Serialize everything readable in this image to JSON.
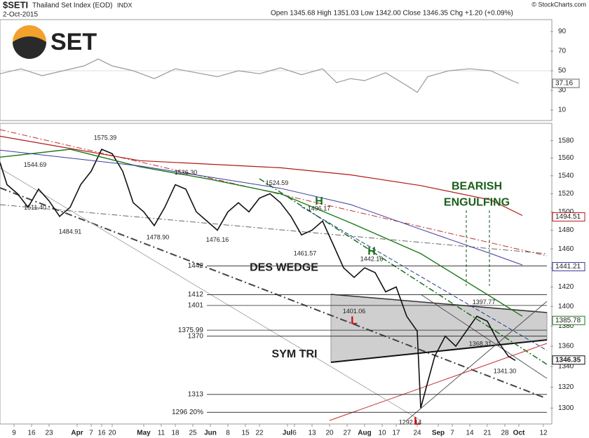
{
  "chart_data": {
    "type": "line",
    "symbol": "$SETI",
    "title": "Thailand Set Index (EOD)",
    "exchange": "INDX",
    "date": "2-Oct-2015",
    "quote": "Open 1345.68 High 1351.03 Low 1342.00 Close 1346.35 Chg +1.20 (+0.09%)",
    "credit": "© StockCharts.com",
    "logo": "SET",
    "log_scale": true,
    "grid": false,
    "xlim": [
      0,
      157
    ],
    "xticks": [
      {
        "value": 4,
        "label": "9"
      },
      {
        "value": 9,
        "label": "16"
      },
      {
        "value": 14,
        "label": "23"
      },
      {
        "value": 22,
        "label": "Apr"
      },
      {
        "value": 26,
        "label": "7"
      },
      {
        "value": 29,
        "label": "16"
      },
      {
        "value": 32,
        "label": "20"
      },
      {
        "value": 41,
        "label": "May"
      },
      {
        "value": 46,
        "label": "11"
      },
      {
        "value": 50,
        "label": "18"
      },
      {
        "value": 55,
        "label": "25"
      },
      {
        "value": 60,
        "label": "Jun"
      },
      {
        "value": 65,
        "label": "8"
      },
      {
        "value": 70,
        "label": "15"
      },
      {
        "value": 74,
        "label": "22"
      },
      {
        "value": 82,
        "label": "Jul"
      },
      {
        "value": 84,
        "label": "6"
      },
      {
        "value": 89,
        "label": "13"
      },
      {
        "value": 94,
        "label": "20"
      },
      {
        "value": 99,
        "label": "27"
      },
      {
        "value": 104,
        "label": "Aug"
      },
      {
        "value": 109,
        "label": "10"
      },
      {
        "value": 113,
        "label": "17"
      },
      {
        "value": 119,
        "label": "24"
      },
      {
        "value": 125,
        "label": "Sep"
      },
      {
        "value": 129,
        "label": "7"
      },
      {
        "value": 134,
        "label": "14"
      },
      {
        "value": 139,
        "label": "21"
      },
      {
        "value": 144,
        "label": "28"
      },
      {
        "value": 148,
        "label": "Oct"
      },
      {
        "value": 155,
        "label": "12"
      }
    ],
    "ylim": [
      1285,
      1600
    ],
    "yticks": [
      1300,
      1320,
      1340,
      1360,
      1380,
      1400,
      1420,
      1440,
      1460,
      1480,
      1500,
      1520,
      1540,
      1560,
      1580
    ],
    "series": [
      {
        "name": "SETI",
        "color": "#111111",
        "width": 1.6,
        "x": [
          0,
          2,
          5,
          8,
          11,
          14,
          17,
          20,
          23,
          26,
          29,
          32,
          35,
          38,
          41,
          44,
          47,
          50,
          53,
          56,
          59,
          62,
          65,
          68,
          71,
          74,
          77,
          80,
          83,
          86,
          89,
          92,
          95,
          98,
          101,
          104,
          107,
          110,
          113,
          116,
          119,
          120,
          122,
          124,
          127,
          130,
          133,
          136,
          139,
          142,
          145,
          147
        ],
        "values": [
          1555,
          1530,
          1520,
          1505,
          1525,
          1512,
          1495,
          1505,
          1530,
          1545,
          1570,
          1565,
          1545,
          1510,
          1500,
          1485,
          1505,
          1530,
          1525,
          1500,
          1490,
          1480,
          1500,
          1510,
          1500,
          1515,
          1520,
          1510,
          1495,
          1475,
          1480,
          1490,
          1465,
          1440,
          1430,
          1440,
          1435,
          1415,
          1420,
          1390,
          1375,
          1300,
          1325,
          1350,
          1370,
          1360,
          1375,
          1390,
          1385,
          1365,
          1350,
          1346
        ]
      },
      {
        "name": "MA50",
        "color": "#1a7a1a",
        "width": 1.4,
        "x": [
          0,
          20,
          40,
          60,
          80,
          100,
          120,
          140,
          149
        ],
        "values": [
          1561,
          1570,
          1550,
          1536,
          1520,
          1488,
          1455,
          1410,
          1390
        ]
      },
      {
        "name": "MA100",
        "color": "#3a3a9a",
        "width": 1,
        "x": [
          0,
          40,
          80,
          100,
          120,
          140,
          149
        ],
        "values": [
          1569,
          1551,
          1526,
          1508,
          1481,
          1455,
          1443
        ]
      },
      {
        "name": "MA200",
        "color": "#b01818",
        "width": 1.2,
        "x": [
          0,
          40,
          80,
          100,
          120,
          140,
          149
        ],
        "values": [
          1585,
          1557,
          1549,
          1541,
          1529,
          1513,
          1496
        ]
      }
    ],
    "flags": [
      {
        "value": 1494.51,
        "color": "#b01818"
      },
      {
        "value": 1441.21,
        "color": "#3a3a9a"
      },
      {
        "value": 1385.78,
        "color": "#1a7a1a"
      },
      {
        "value": 1346.35,
        "color": "#111111"
      }
    ],
    "levels": [
      1442,
      1412,
      1401,
      1375.99,
      1370,
      1313,
      {
        "value": 1296,
        "label": "1296 20%"
      }
    ],
    "price_labels": [
      {
        "x": 30,
        "value": 1575.39,
        "pos": "above"
      },
      {
        "x": 10,
        "value": 1544.69,
        "pos": "above"
      },
      {
        "x": 10,
        "value": 1511.4,
        "label": "1511.40",
        "pos": "below"
      },
      {
        "x": 20,
        "value": 1484.91,
        "pos": "below"
      },
      {
        "x": 45,
        "value": 1478.9,
        "label": "1478.90",
        "pos": "below"
      },
      {
        "x": 53,
        "value": 1536.3,
        "label": "1536.30",
        "pos": "above"
      },
      {
        "x": 62,
        "value": 1476.16,
        "pos": "below"
      },
      {
        "x": 79,
        "value": 1524.59,
        "pos": "above"
      },
      {
        "x": 91,
        "value": 1496.17,
        "pos": "above"
      },
      {
        "x": 87,
        "value": 1461.57,
        "pos": "below"
      },
      {
        "x": 106,
        "value": 1442.16,
        "pos": "above"
      },
      {
        "x": 101,
        "value": 1401.06,
        "pos": "below"
      },
      {
        "x": 138,
        "value": 1397.77,
        "pos": "above"
      },
      {
        "x": 137,
        "value": 1368.31,
        "pos": "below"
      },
      {
        "x": 144,
        "value": 1341.3,
        "label": "1341.30",
        "pos": "below"
      },
      {
        "x": 117,
        "value": 1292.14,
        "pos": "below"
      }
    ],
    "notes": [
      {
        "text": "DES WEDGE",
        "x": 81,
        "value": 1440,
        "color": "#222222"
      },
      {
        "text": "SYM TRI",
        "x": 84,
        "value": 1352,
        "color": "#222222"
      },
      {
        "text": "BEARISH",
        "x": 136,
        "value": 1528,
        "color": "#1a5e1a"
      },
      {
        "text": "ENGULFING",
        "x": 136,
        "value": 1510,
        "color": "#1a5e1a"
      },
      {
        "text": "H",
        "x": 91,
        "value": 1511,
        "color": "#1a6e1a"
      },
      {
        "text": "H",
        "x": 106,
        "value": 1457,
        "color": "#1a6e1a"
      },
      {
        "text": "L",
        "x": 101,
        "value": 1385,
        "color": "#cc1111"
      },
      {
        "text": "L",
        "x": 119,
        "value": 1287,
        "color": "#cc1111"
      }
    ],
    "rsi": {
      "ylim": [
        0,
        100
      ],
      "yticks": [
        10,
        30,
        50,
        70,
        90
      ],
      "color": "#999999",
      "x": [
        0,
        6,
        12,
        18,
        24,
        28,
        32,
        38,
        44,
        50,
        56,
        62,
        68,
        74,
        80,
        86,
        92,
        96,
        100,
        104,
        110,
        116,
        119,
        122,
        128,
        134,
        140,
        146,
        148
      ],
      "values": [
        47,
        52,
        45,
        50,
        55,
        62,
        55,
        50,
        42,
        52,
        48,
        44,
        50,
        47,
        53,
        46,
        52,
        38,
        42,
        40,
        48,
        35,
        28,
        44,
        50,
        52,
        50,
        40,
        37.16
      ]
    }
  }
}
